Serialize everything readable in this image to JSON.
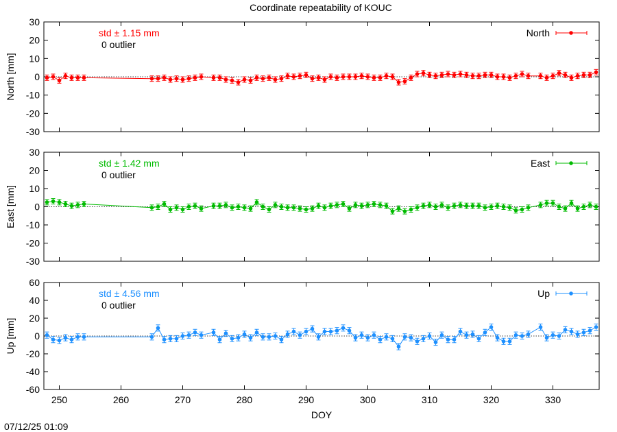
{
  "title": "Coordinate repeatability of KOUC",
  "timestamp": "07/12/25 01:09",
  "chart_data": {
    "type": "scatter",
    "title": "Coordinate repeatability of KOUC",
    "xlabel": "DOY",
    "xlim": [
      247.5,
      337.5
    ],
    "xticks": [
      250,
      260,
      270,
      280,
      290,
      300,
      310,
      320,
      330
    ],
    "panels": [
      {
        "name": "North",
        "ylabel": "North [mm]",
        "ylim": [
          -30,
          30
        ],
        "yticks": [
          30,
          20,
          10,
          0,
          -10,
          -20,
          -30
        ],
        "color": "#ff0000",
        "std_label": "std ± 1.15 mm",
        "outlier_label": "0 outlier",
        "legend": "North",
        "err": 1.5,
        "x": [
          248,
          249,
          250,
          251,
          252,
          253,
          254,
          265,
          266,
          267,
          268,
          269,
          270,
          271,
          272,
          273,
          275,
          276,
          277,
          278,
          279,
          280,
          281,
          282,
          283,
          284,
          285,
          286,
          287,
          288,
          289,
          290,
          291,
          292,
          293,
          294,
          295,
          296,
          297,
          298,
          299,
          300,
          301,
          302,
          303,
          304,
          305,
          306,
          307,
          308,
          309,
          310,
          311,
          312,
          313,
          314,
          315,
          316,
          317,
          318,
          319,
          320,
          321,
          322,
          323,
          324,
          325,
          326,
          328,
          329,
          330,
          331,
          332,
          333,
          334,
          335,
          336,
          337
        ],
        "y": [
          -0.5,
          0,
          -2,
          0.5,
          -0.5,
          -0.5,
          -0.5,
          -1,
          -1,
          -0.5,
          -1.5,
          -1,
          -1.5,
          -1,
          -0.5,
          0,
          -0.5,
          -0.5,
          -1.5,
          -2,
          -3,
          -1.5,
          -2,
          -0.5,
          -1,
          -0.5,
          -1.5,
          -1,
          0.5,
          0,
          0.5,
          1,
          -1,
          -0.5,
          -1.5,
          0,
          -0.5,
          0,
          0,
          0,
          0.5,
          0,
          -0.5,
          -0.5,
          0.5,
          0,
          -3,
          -2.5,
          -0.5,
          1.5,
          2,
          1,
          0.5,
          1,
          1.5,
          1,
          1.5,
          1,
          0.5,
          0.5,
          1,
          1,
          0,
          0,
          -0.5,
          0.5,
          1.5,
          0.5,
          0.5,
          -0.5,
          0.5,
          2,
          1,
          -0.5,
          0.5,
          1,
          1,
          2.5
        ]
      },
      {
        "name": "East",
        "ylabel": "East [mm]",
        "ylim": [
          -30,
          30
        ],
        "yticks": [
          30,
          20,
          10,
          0,
          -10,
          -20,
          -30
        ],
        "color": "#00bb00",
        "std_label": "std ± 1.42 mm",
        "outlier_label": "0 outlier",
        "legend": "East",
        "err": 1.5,
        "x": [
          248,
          249,
          250,
          251,
          252,
          253,
          254,
          265,
          266,
          267,
          268,
          269,
          270,
          271,
          272,
          273,
          275,
          276,
          277,
          278,
          279,
          280,
          281,
          282,
          283,
          284,
          285,
          286,
          287,
          288,
          289,
          290,
          291,
          292,
          293,
          294,
          295,
          296,
          297,
          298,
          299,
          300,
          301,
          302,
          303,
          304,
          305,
          306,
          307,
          308,
          309,
          310,
          311,
          312,
          313,
          314,
          315,
          316,
          317,
          318,
          319,
          320,
          321,
          322,
          323,
          324,
          325,
          326,
          328,
          329,
          330,
          331,
          332,
          333,
          334,
          335,
          336,
          337
        ],
        "y": [
          2.5,
          3,
          2.5,
          1.5,
          0.5,
          1,
          1.5,
          -0.5,
          0,
          1.5,
          -1.5,
          -0.5,
          -1.5,
          0,
          0.5,
          -1,
          0.5,
          0.5,
          1,
          -0.5,
          0,
          -0.5,
          -1,
          2.5,
          0,
          -1.5,
          1,
          0,
          -0.5,
          -0.5,
          -1,
          -1.5,
          -1,
          0.5,
          -0.5,
          0.5,
          1,
          1.5,
          -1,
          1,
          0.5,
          1,
          1.5,
          1,
          0.5,
          -2.5,
          -1,
          -2.5,
          -1.5,
          -0.5,
          0.5,
          1,
          0,
          1,
          -0.5,
          0.5,
          1,
          0.5,
          0.5,
          0.5,
          -0.5,
          0,
          0.5,
          0,
          -0.5,
          -2,
          -1.5,
          -0.5,
          1,
          2,
          2,
          0,
          -1,
          2,
          -1,
          0,
          1,
          0
        ]
      },
      {
        "name": "Up",
        "ylabel": "Up [mm]",
        "ylim": [
          -60,
          60
        ],
        "yticks": [
          60,
          40,
          20,
          0,
          -20,
          -40,
          -60
        ],
        "color": "#1e90ff",
        "std_label": "std ± 4.56 mm",
        "outlier_label": "0 outlier",
        "legend": "Up",
        "err": 3.5,
        "x": [
          248,
          249,
          250,
          251,
          252,
          253,
          254,
          265,
          266,
          267,
          268,
          269,
          270,
          271,
          272,
          273,
          275,
          276,
          277,
          278,
          279,
          280,
          281,
          282,
          283,
          284,
          285,
          286,
          287,
          288,
          289,
          290,
          291,
          292,
          293,
          294,
          295,
          296,
          297,
          298,
          299,
          300,
          301,
          302,
          303,
          304,
          305,
          306,
          307,
          308,
          309,
          310,
          311,
          312,
          313,
          314,
          315,
          316,
          317,
          318,
          319,
          320,
          321,
          322,
          323,
          324,
          325,
          326,
          328,
          329,
          330,
          331,
          332,
          333,
          334,
          335,
          336,
          337
        ],
        "y": [
          1,
          -4,
          -5,
          -2,
          -4,
          -1,
          -1,
          -1,
          9,
          -4,
          -3,
          -3,
          0,
          1,
          4,
          1,
          4,
          -4,
          3,
          -3,
          -2,
          2,
          -2,
          4,
          -1,
          -1,
          0,
          -4,
          2,
          5,
          1,
          5,
          8,
          -1,
          5,
          5,
          6,
          9,
          6,
          -2,
          1,
          -2,
          1,
          -4,
          -1,
          -3,
          -12,
          -1,
          -2,
          -6,
          -3,
          0,
          -7,
          1,
          -4,
          -4,
          5,
          1,
          2,
          -3,
          4,
          10,
          -2,
          -6,
          -6,
          1,
          0,
          2,
          10,
          -2,
          1,
          0,
          7,
          5,
          2,
          4,
          6,
          10
        ]
      }
    ]
  }
}
